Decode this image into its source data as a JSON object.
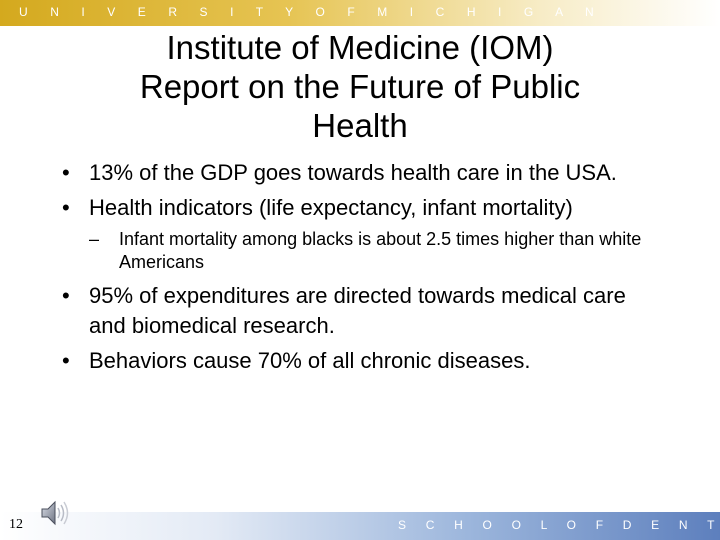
{
  "header": {
    "university": "U N I V E R S I T Y   O F   M I C H I G A N"
  },
  "title": "Institute of Medicine (IOM)\nReport on the  Future of Public\nHealth",
  "bullets": {
    "b1": "13% of the GDP goes towards health care in the USA.",
    "b2": "Health indicators (life expectancy, infant mortality)",
    "b2_sub1": "Infant mortality among blacks is about 2.5 times higher than white Americans",
    "b3": "95% of expenditures are directed towards medical care and biomedical research.",
    "b4": "Behaviors cause 70% of all chronic diseases.",
    "bullet_marker": "•",
    "sub_marker": "–"
  },
  "footer": {
    "school": "S C H O O L   O F   D E N T I S T R Y",
    "page_number": "12"
  },
  "icons": {
    "audio": "speaker-icon"
  },
  "colors": {
    "top_bar_gold": "#d4a91e",
    "bottom_bar_blue": "#5d7fbd",
    "text": "#000000"
  }
}
